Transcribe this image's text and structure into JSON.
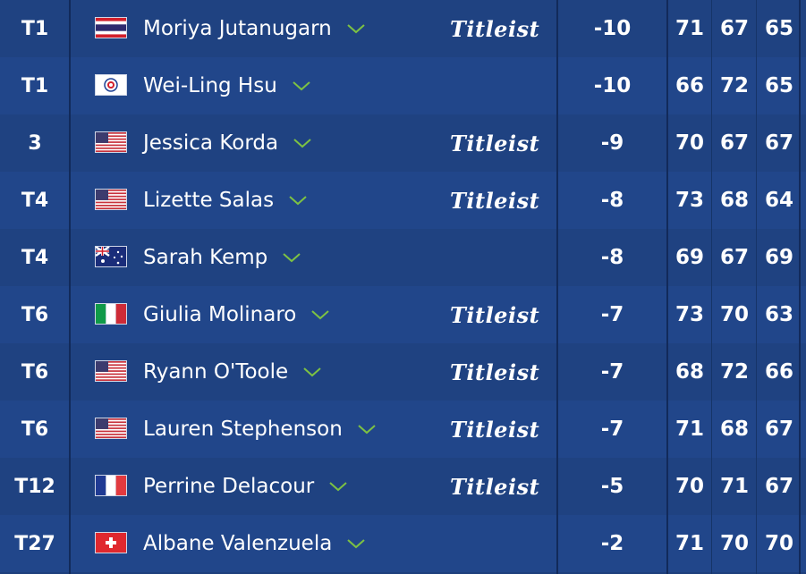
{
  "sponsor_label": "Titleist",
  "colors": {
    "bg": "#1d3f7c",
    "divider": "#122a5a",
    "chevron": "#7dc243"
  },
  "rows": [
    {
      "pos": "T1",
      "name": "Moriya Jutanugarn",
      "flag": "thailand-flag-icon",
      "sponsor": true,
      "total": "-10",
      "r1": "71",
      "r2": "67",
      "r3": "65"
    },
    {
      "pos": "T1",
      "name": "Wei-Ling Hsu",
      "flag": "chinese-taipei-flag-icon",
      "sponsor": false,
      "total": "-10",
      "r1": "66",
      "r2": "72",
      "r3": "65"
    },
    {
      "pos": "3",
      "name": "Jessica Korda",
      "flag": "usa-flag-icon",
      "sponsor": true,
      "total": "-9",
      "r1": "70",
      "r2": "67",
      "r3": "67"
    },
    {
      "pos": "T4",
      "name": "Lizette Salas",
      "flag": "usa-flag-icon",
      "sponsor": true,
      "total": "-8",
      "r1": "73",
      "r2": "68",
      "r3": "64"
    },
    {
      "pos": "T4",
      "name": "Sarah Kemp",
      "flag": "australia-flag-icon",
      "sponsor": false,
      "total": "-8",
      "r1": "69",
      "r2": "67",
      "r3": "69"
    },
    {
      "pos": "T6",
      "name": "Giulia Molinaro",
      "flag": "italy-flag-icon",
      "sponsor": true,
      "total": "-7",
      "r1": "73",
      "r2": "70",
      "r3": "63"
    },
    {
      "pos": "T6",
      "name": "Ryann O'Toole",
      "flag": "usa-flag-icon",
      "sponsor": true,
      "total": "-7",
      "r1": "68",
      "r2": "72",
      "r3": "66"
    },
    {
      "pos": "T6",
      "name": "Lauren Stephenson",
      "flag": "usa-flag-icon",
      "sponsor": true,
      "total": "-7",
      "r1": "71",
      "r2": "68",
      "r3": "67"
    },
    {
      "pos": "T12",
      "name": "Perrine Delacour",
      "flag": "france-flag-icon",
      "sponsor": true,
      "total": "-5",
      "r1": "70",
      "r2": "71",
      "r3": "67"
    },
    {
      "pos": "T27",
      "name": "Albane Valenzuela",
      "flag": "switzerland-flag-icon",
      "sponsor": false,
      "total": "-2",
      "r1": "71",
      "r2": "70",
      "r3": "70"
    }
  ]
}
